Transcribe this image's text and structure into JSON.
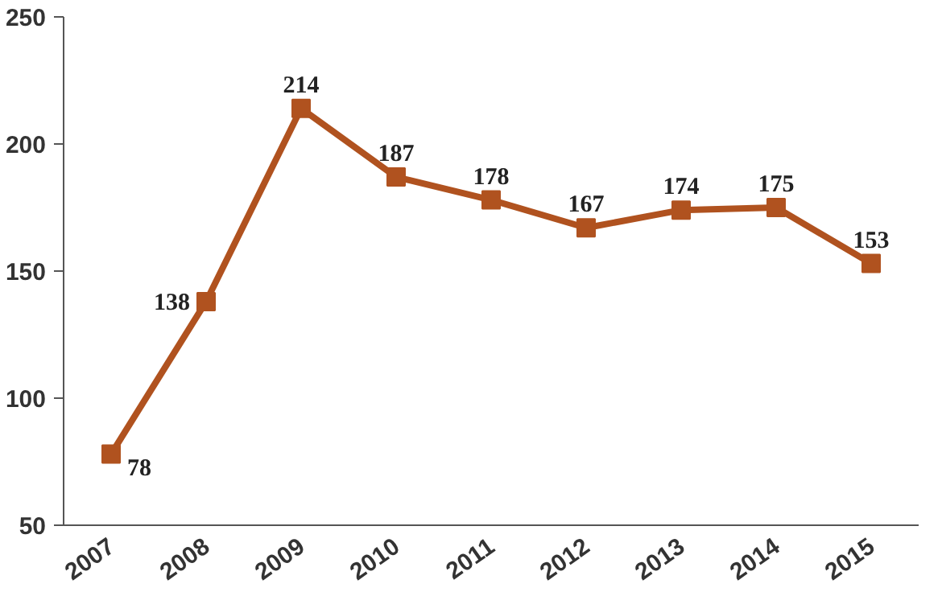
{
  "chart_data": {
    "type": "line",
    "categories": [
      "2007",
      "2008",
      "2009",
      "2010",
      "2011",
      "2012",
      "2013",
      "2014",
      "2015"
    ],
    "values": [
      78,
      138,
      214,
      187,
      178,
      167,
      174,
      175,
      153
    ],
    "color": "#b0521f",
    "marker": "square",
    "line_style": "solid",
    "data_labels": true,
    "ylim": [
      50,
      250
    ],
    "yticks": [
      50,
      100,
      150,
      200,
      250
    ]
  }
}
